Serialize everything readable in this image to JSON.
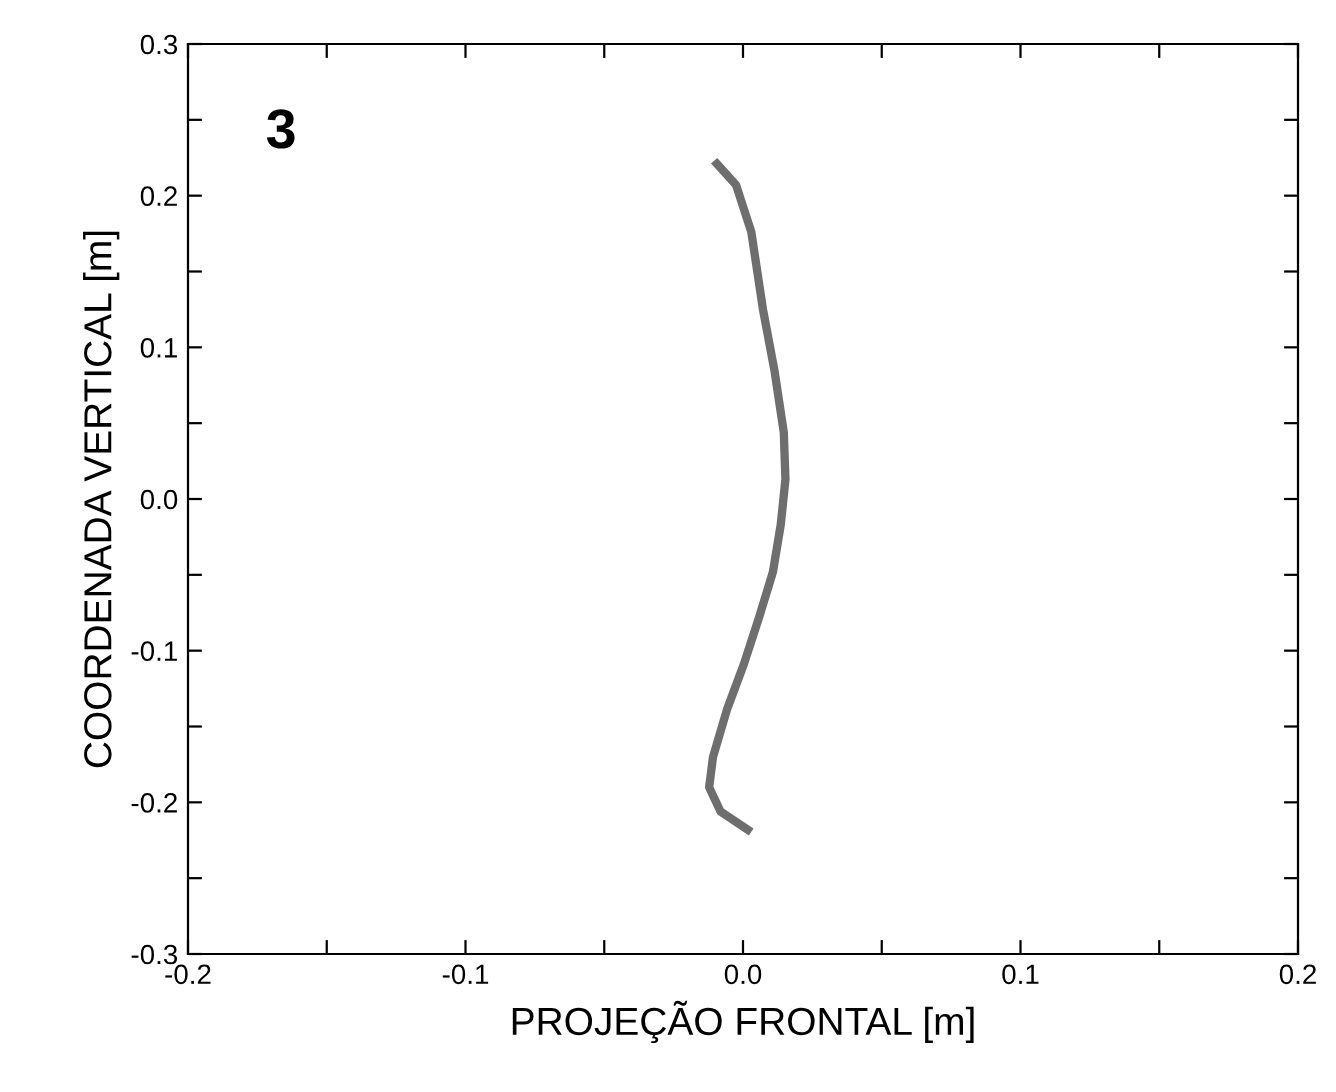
{
  "chart_data": {
    "type": "line",
    "xlabel": "PROJEÇÃO FRONTAL [m]",
    "ylabel": "COORDENADA VERTICAL [m]",
    "annotations": [
      "3"
    ],
    "series": [
      {
        "color": "#6e6e6e",
        "x": [
          -0.0094,
          -0.0025,
          0.003,
          0.0072,
          0.0114,
          0.0147,
          0.0153,
          0.0136,
          0.0108,
          0.0058,
          0.0003,
          -0.0058,
          -0.0108,
          -0.0122,
          -0.0081,
          0.0017
        ],
        "values": [
          0.221,
          0.207,
          0.176,
          0.125,
          0.084,
          0.044,
          0.013,
          -0.017,
          -0.048,
          -0.078,
          -0.109,
          -0.139,
          -0.17,
          -0.19,
          -0.206,
          -0.218
        ]
      }
    ],
    "xlim": [
      -0.2,
      0.2
    ],
    "ylim": [
      -0.3,
      0.3
    ],
    "xticks": [
      -0.2,
      {
        "value": -0.15,
        "label": null
      },
      -0.1,
      {
        "value": -0.05,
        "label": null
      },
      {
        "value": 0,
        "label": "0.0"
      },
      {
        "value": 0.05,
        "label": null
      },
      0.1,
      {
        "value": 0.15,
        "label": null
      },
      0.2
    ],
    "yticks": [
      -0.3,
      {
        "value": -0.25,
        "label": null
      },
      -0.2,
      {
        "value": -0.15,
        "label": null
      },
      -0.1,
      {
        "value": -0.05,
        "label": null
      },
      {
        "value": 0,
        "label": "0.0"
      },
      {
        "value": 0.05,
        "label": null
      },
      0.1,
      {
        "value": 0.15,
        "label": null
      },
      0.2,
      {
        "value": 0.25,
        "label": null
      },
      0.3
    ],
    "grid": false,
    "legend": false,
    "marker": "none",
    "line_style": "solid"
  }
}
